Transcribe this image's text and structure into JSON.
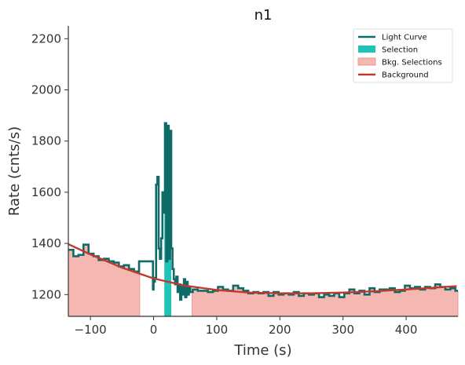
{
  "chart_data": {
    "type": "line",
    "title": "n1",
    "xlabel": "Time (s)",
    "ylabel": "Rate (cnts/s)",
    "xlim": [
      -135,
      482
    ],
    "ylim": [
      1115,
      2250
    ],
    "xticks": [
      -100,
      0,
      100,
      200,
      300,
      400
    ],
    "yticks": [
      1200,
      1400,
      1600,
      1800,
      2000,
      2200
    ],
    "legend_position": "top-right",
    "colors": {
      "light_curve": "#0e6b68",
      "selection": "#1fc4b6",
      "bkg_selection": "#f5b7b1",
      "background": "#c0392b"
    },
    "legend": [
      {
        "label": "Light Curve",
        "kind": "line",
        "color": "#0e6b68"
      },
      {
        "label": "Selection",
        "kind": "patch",
        "color": "#1fc4b6"
      },
      {
        "label": "Bkg. Selections",
        "kind": "patch",
        "color": "#f5b7b1"
      },
      {
        "label": "Background",
        "kind": "line",
        "color": "#c0392b"
      }
    ],
    "light_curve": {
      "x": [
        -135,
        -127,
        -119,
        -111,
        -103,
        -95,
        -87,
        -79,
        -71,
        -63,
        -55,
        -47,
        -39,
        -31,
        -23,
        -17,
        -13,
        -9,
        -5,
        -1,
        0,
        2,
        4,
        6,
        8,
        10,
        12,
        14,
        16,
        18,
        20,
        22,
        24,
        26,
        28,
        30,
        32,
        34,
        36,
        38,
        40,
        42,
        44,
        46,
        48,
        50,
        52,
        54,
        56,
        58,
        60,
        62,
        70,
        78,
        86,
        94,
        102,
        110,
        118,
        126,
        134,
        142,
        150,
        158,
        166,
        174,
        182,
        190,
        198,
        206,
        214,
        222,
        230,
        238,
        246,
        254,
        262,
        270,
        278,
        286,
        294,
        302,
        310,
        318,
        326,
        334,
        342,
        350,
        358,
        366,
        374,
        382,
        390,
        398,
        406,
        414,
        422,
        430,
        438,
        446,
        454,
        462,
        470,
        478
      ],
      "y": [
        1375,
        1350,
        1355,
        1395,
        1360,
        1350,
        1335,
        1340,
        1330,
        1325,
        1310,
        1315,
        1300,
        1290,
        1330,
        1330,
        1330,
        1330,
        1330,
        1220,
        1250,
        1265,
        1630,
        1660,
        1380,
        1340,
        1420,
        1600,
        1520,
        1870,
        1330,
        1860,
        1340,
        1840,
        1380,
        1300,
        1260,
        1240,
        1270,
        1210,
        1240,
        1180,
        1230,
        1200,
        1260,
        1190,
        1250,
        1200,
        1230,
        1210,
        1210,
        1220,
        1215,
        1215,
        1210,
        1215,
        1230,
        1220,
        1215,
        1235,
        1225,
        1215,
        1205,
        1210,
        1205,
        1210,
        1195,
        1210,
        1200,
        1205,
        1200,
        1210,
        1195,
        1205,
        1200,
        1205,
        1190,
        1200,
        1195,
        1205,
        1190,
        1205,
        1220,
        1205,
        1215,
        1200,
        1225,
        1210,
        1220,
        1220,
        1225,
        1210,
        1215,
        1235,
        1225,
        1230,
        1220,
        1230,
        1225,
        1240,
        1230,
        1220,
        1225,
        1215
      ]
    },
    "selection_range": [
      17,
      28
    ],
    "bkg_selections": [
      [
        -135,
        -22
      ],
      [
        61,
        482
      ]
    ],
    "background": {
      "x": [
        -135,
        -100,
        -50,
        0,
        50,
        100,
        150,
        200,
        250,
        300,
        350,
        400,
        450,
        480
      ],
      "y": [
        1397,
        1357,
        1305,
        1263,
        1235,
        1218,
        1208,
        1205,
        1205,
        1208,
        1213,
        1220,
        1228,
        1233
      ]
    }
  }
}
